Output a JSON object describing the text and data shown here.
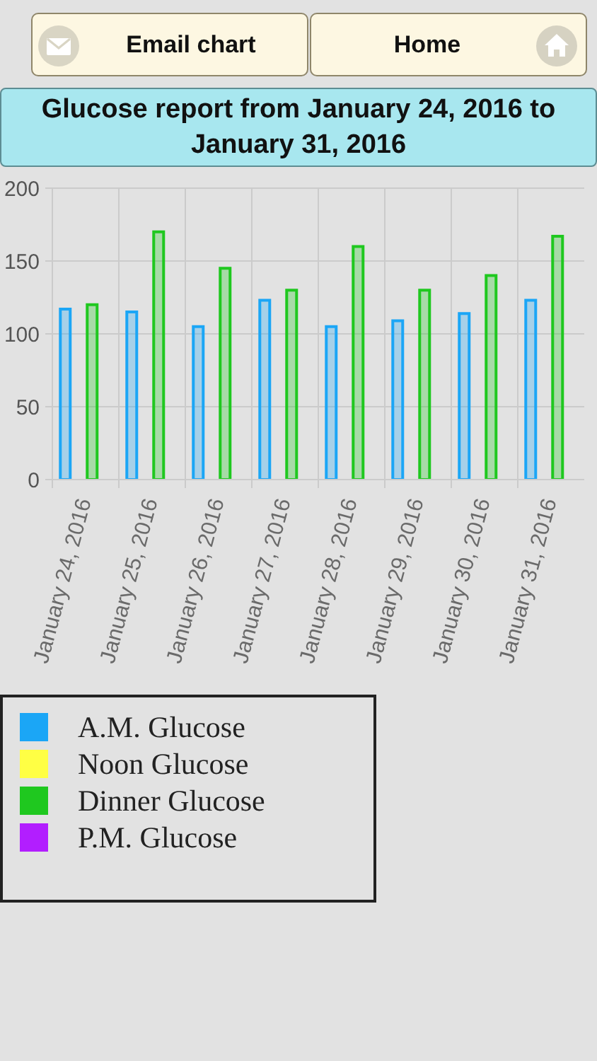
{
  "chart_data": {
    "type": "bar",
    "title": "Glucose report from January 24, 2016 to January 31, 2016",
    "annotations": [
      "Email chart",
      "Home"
    ],
    "categories": [
      "January 24, 2016",
      "January 25, 2016",
      "January 26, 2016",
      "January 27, 2016",
      "January 28, 2016",
      "January 29, 2016",
      "January 30, 2016",
      "January 31, 2016"
    ],
    "series": [
      {
        "name": "A.M. Glucose",
        "color": "#1ba6f6",
        "values": [
          117,
          115,
          105,
          123,
          105,
          109,
          114,
          123
        ]
      },
      {
        "name": "Noon Glucose",
        "color": "#ffff44",
        "values": [
          null,
          null,
          null,
          null,
          null,
          null,
          null,
          null
        ]
      },
      {
        "name": "Dinner Glucose",
        "color": "#1fc81f",
        "values": [
          120,
          170,
          145,
          130,
          160,
          130,
          140,
          167
        ]
      },
      {
        "name": "P.M. Glucose",
        "color": "#b21eff",
        "values": [
          null,
          null,
          null,
          null,
          null,
          null,
          null,
          null
        ]
      }
    ],
    "ylim": [
      0,
      200
    ],
    "yticks": [
      0,
      50,
      100,
      150,
      200
    ],
    "grid": true,
    "legend": "bottom left"
  }
}
